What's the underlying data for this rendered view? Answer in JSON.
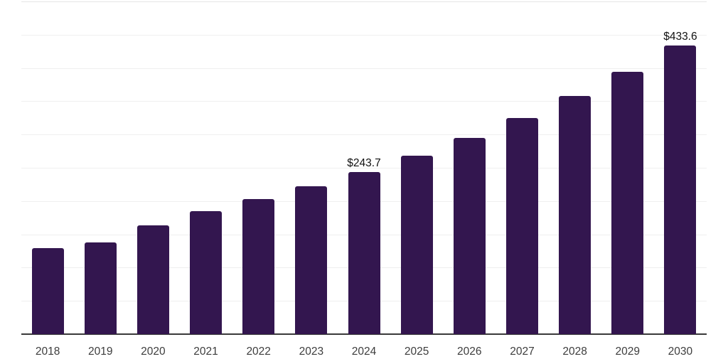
{
  "chart": {
    "bar_color": "#33164f",
    "grid_color": "#efefef",
    "top_grid_color": "#e6e6e6",
    "axis_color": "#3a3a3a",
    "x_label_color": "#3d3d3d",
    "data_label_color": "#111111",
    "background_color": "#ffffff"
  },
  "chart_data": {
    "type": "bar",
    "title": "",
    "xlabel": "",
    "ylabel": "",
    "legend": "none",
    "grid": "horizontal",
    "ylim": [
      0,
      500
    ],
    "grid_step": 50,
    "y_tick_labels_visible": false,
    "categories": [
      "2018",
      "2019",
      "2020",
      "2021",
      "2022",
      "2023",
      "2024",
      "2025",
      "2026",
      "2027",
      "2028",
      "2029",
      "2030"
    ],
    "values": [
      129.7,
      137.8,
      163.6,
      184.9,
      202.9,
      222.0,
      243.7,
      268.3,
      295.4,
      325.2,
      358.0,
      394.1,
      433.6
    ],
    "data_labels": [
      null,
      null,
      null,
      null,
      null,
      null,
      "$243.7",
      null,
      null,
      null,
      null,
      null,
      "$433.6"
    ]
  }
}
